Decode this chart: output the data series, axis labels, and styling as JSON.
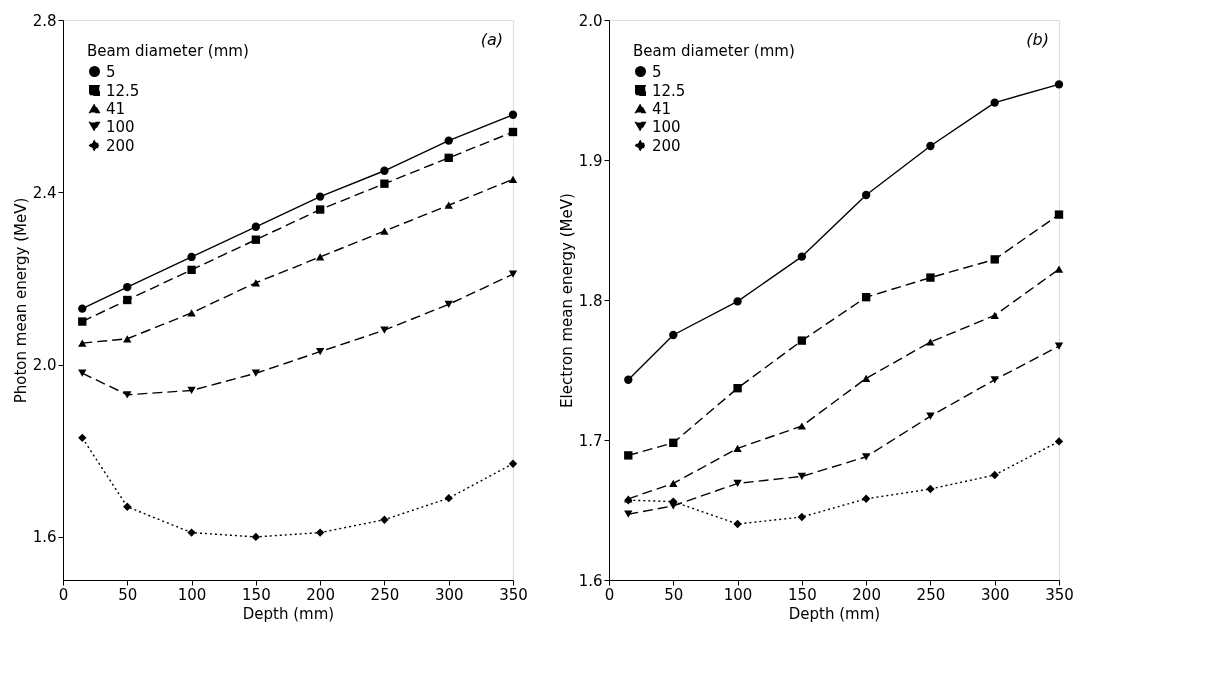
{
  "chart_data": [
    {
      "type": "line",
      "xlabel": "Depth (mm)",
      "ylabel": "Photon mean energy (MeV)",
      "legend_title": "Beam diameter (mm)",
      "legend": "top left",
      "grid": false,
      "annotations": [
        "(a)"
      ],
      "x": [
        15,
        50,
        100,
        150,
        200,
        250,
        300,
        350
      ],
      "xlim": [
        0,
        350
      ],
      "xticks": [
        0,
        50,
        100,
        150,
        200,
        250,
        300,
        350
      ],
      "ylim": [
        1.5,
        2.8
      ],
      "yticks": [
        1.6,
        {
          "value": 2.0,
          "label": "2.0"
        },
        2.4,
        2.8
      ],
      "series": [
        {
          "name": "5",
          "color": "#000000",
          "marker": "circle",
          "line_style": "solid",
          "values": [
            2.13,
            2.18,
            2.25,
            2.32,
            2.39,
            2.45,
            2.52,
            2.58
          ]
        },
        {
          "name": "12.5",
          "color": "#000000",
          "marker": "square",
          "line_style": "dashed",
          "values": [
            2.1,
            2.15,
            2.22,
            2.29,
            2.36,
            2.42,
            2.48,
            2.54
          ]
        },
        {
          "name": "41",
          "color": "#000000",
          "marker": "triangle",
          "line_style": "dashed",
          "values": [
            2.05,
            2.06,
            2.12,
            2.19,
            2.25,
            2.31,
            2.37,
            2.43
          ]
        },
        {
          "name": "100",
          "color": "#000000",
          "marker": "triangle-down",
          "line_style": "dashed",
          "values": [
            1.98,
            1.93,
            1.94,
            1.98,
            2.03,
            2.08,
            2.14,
            2.21
          ]
        },
        {
          "name": "200",
          "color": "#000000",
          "marker": "diamond",
          "line_style": "dotted",
          "values": [
            1.83,
            1.67,
            1.61,
            1.6,
            1.61,
            1.64,
            1.69,
            1.77
          ]
        }
      ]
    },
    {
      "type": "line",
      "xlabel": "Depth (mm)",
      "ylabel": "Electron mean energy (MeV)",
      "legend_title": "Beam diameter (mm)",
      "legend": "top left",
      "grid": false,
      "annotations": [
        "(b)"
      ],
      "x": [
        15,
        50,
        100,
        150,
        200,
        250,
        300,
        350
      ],
      "xlim": [
        0,
        350
      ],
      "xticks": [
        0,
        50,
        100,
        150,
        200,
        250,
        300,
        350
      ],
      "ylim": [
        1.6,
        2.0
      ],
      "yticks": [
        1.6,
        1.7,
        1.8,
        1.9,
        {
          "value": 2.0,
          "label": "2.0"
        }
      ],
      "series": [
        {
          "name": "5",
          "color": "#000000",
          "marker": "circle",
          "line_style": "solid",
          "values": [
            1.743,
            1.775,
            1.799,
            1.831,
            1.875,
            1.91,
            1.941,
            1.954
          ]
        },
        {
          "name": "12.5",
          "color": "#000000",
          "marker": "square",
          "line_style": "dashed",
          "values": [
            1.689,
            1.698,
            1.737,
            1.771,
            1.802,
            1.816,
            1.829,
            1.861
          ]
        },
        {
          "name": "41",
          "color": "#000000",
          "marker": "triangle",
          "line_style": "dashed",
          "values": [
            1.658,
            1.669,
            1.694,
            1.71,
            1.744,
            1.77,
            1.789,
            1.822
          ]
        },
        {
          "name": "100",
          "color": "#000000",
          "marker": "triangle-down",
          "line_style": "dashed",
          "values": [
            1.647,
            1.653,
            1.669,
            1.674,
            1.688,
            1.717,
            1.743,
            1.767
          ]
        },
        {
          "name": "200",
          "color": "#000000",
          "marker": "diamond",
          "line_style": "dotted",
          "values": [
            1.657,
            1.656,
            1.64,
            1.645,
            1.658,
            1.665,
            1.675,
            1.699
          ]
        }
      ]
    }
  ]
}
